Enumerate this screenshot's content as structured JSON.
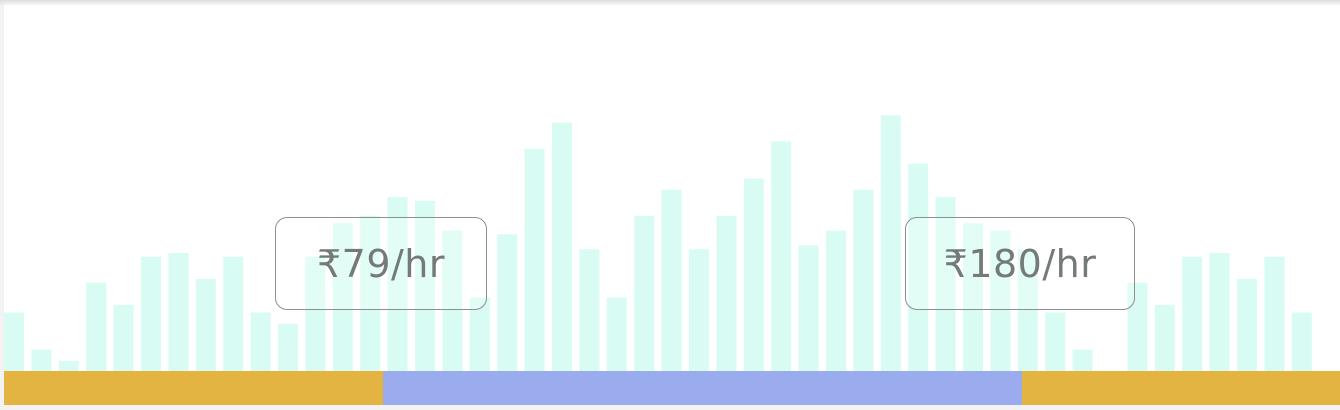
{
  "price_slider": {
    "min_label": "₹79/hr",
    "max_label": "₹180/hr",
    "selected_range_percent": [
      28.4,
      76.2
    ]
  },
  "chart_data": {
    "type": "bar",
    "values": [
      16,
      6,
      3,
      24,
      18,
      31,
      32,
      25,
      31,
      16,
      13,
      31,
      40,
      42,
      47,
      46,
      38,
      20,
      37,
      60,
      67,
      33,
      20,
      42,
      49,
      33,
      42,
      52,
      62,
      34,
      38,
      49,
      69,
      56,
      47,
      40,
      38,
      33,
      16,
      6,
      0,
      24,
      18,
      31,
      32,
      25,
      31,
      16
    ],
    "ylim": [
      0,
      100
    ],
    "grid": false
  },
  "colors": {
    "bar": "#d8fbf3",
    "range_outside": "#e4b443",
    "range_selected": "#9aacee",
    "label_border": "#8f8f8f",
    "label_text": "#737a78"
  }
}
